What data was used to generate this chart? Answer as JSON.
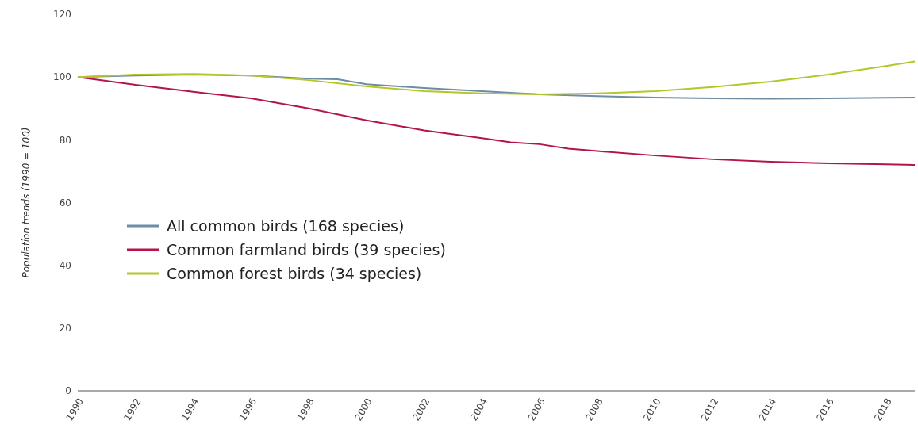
{
  "chart_data": {
    "type": "line",
    "ylabel": "Population trends (1990 = 100)",
    "xlim": [
      1990,
      2019
    ],
    "xticks": [
      1990,
      1992,
      1994,
      1996,
      1998,
      2000,
      2002,
      2004,
      2006,
      2008,
      2010,
      2012,
      2014,
      2016,
      2018
    ],
    "ylim": [
      0,
      120
    ],
    "yticks": [
      0,
      20,
      40,
      60,
      80,
      100,
      120
    ],
    "grid": false,
    "legend": "left",
    "marker": "none",
    "line_style": "solid",
    "series": [
      {
        "name": "All common birds (168 species)",
        "color": "#6d8ca6",
        "x": [
          1990,
          1992,
          1994,
          1996,
          1998,
          1999,
          2000,
          2002,
          2004,
          2006,
          2008,
          2010,
          2012,
          2014,
          2016,
          2018,
          2019
        ],
        "values": [
          100,
          100.5,
          100.8,
          100.5,
          99.5,
          99.3,
          97.7,
          96.5,
          95.5,
          94.5,
          93.9,
          93.5,
          93.2,
          93.1,
          93.2,
          93.4,
          93.5
        ]
      },
      {
        "name": "Common farmland birds (39 species)",
        "color": "#b3144f",
        "x": [
          1990,
          1992,
          1994,
          1996,
          1998,
          2000,
          2002,
          2004,
          2005,
          2006,
          2007,
          2008,
          2010,
          2012,
          2014,
          2016,
          2018,
          2019
        ],
        "values": [
          100,
          97.5,
          95.3,
          93.2,
          90,
          86.2,
          83,
          80.5,
          79.2,
          78.6,
          77.2,
          76.4,
          75,
          73.8,
          73,
          72.5,
          72.2,
          72
        ]
      },
      {
        "name": "Common forest birds (34 species)",
        "color": "#b5c62a",
        "x": [
          1990,
          1992,
          1994,
          1996,
          1998,
          2000,
          2002,
          2004,
          2006,
          2008,
          2010,
          2012,
          2014,
          2016,
          2018,
          2019
        ],
        "values": [
          100,
          100.8,
          101,
          100.5,
          99,
          97,
          95.5,
          94.8,
          94.5,
          94.8,
          95.5,
          96.8,
          98.5,
          100.8,
          103.5,
          105
        ]
      }
    ]
  }
}
